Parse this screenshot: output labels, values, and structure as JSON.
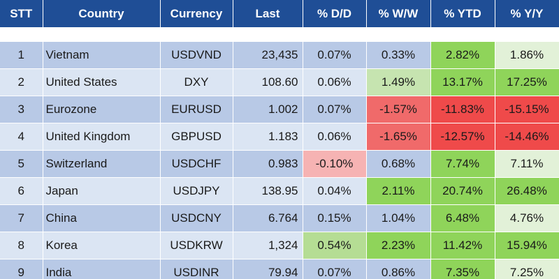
{
  "table": {
    "columns": [
      "STT",
      "Country",
      "Currency",
      "Last",
      "% D/D",
      "% W/W",
      "% YTD",
      "% Y/Y"
    ],
    "rows": [
      {
        "stt": "1",
        "country": "Vietnam",
        "currency": "USDVND",
        "last": "23,435",
        "dd": "0.07%",
        "ww": "0.33%",
        "ytd": "2.82%",
        "yy": "1.86%"
      },
      {
        "stt": "2",
        "country": "United States",
        "currency": "DXY",
        "last": "108.60",
        "dd": "0.06%",
        "ww": "1.49%",
        "ytd": "13.17%",
        "yy": "17.25%"
      },
      {
        "stt": "3",
        "country": "Eurozone",
        "currency": "EURUSD",
        "last": "1.002",
        "dd": "0.07%",
        "ww": "-1.57%",
        "ytd": "-11.83%",
        "yy": "-15.15%"
      },
      {
        "stt": "4",
        "country": "United Kingdom",
        "currency": "GBPUSD",
        "last": "1.183",
        "dd": "0.06%",
        "ww": "-1.65%",
        "ytd": "-12.57%",
        "yy": "-14.46%"
      },
      {
        "stt": "5",
        "country": "Switzerland",
        "currency": "USDCHF",
        "last": "0.983",
        "dd": "-0.10%",
        "ww": "0.68%",
        "ytd": "7.74%",
        "yy": "7.11%"
      },
      {
        "stt": "6",
        "country": "Japan",
        "currency": "USDJPY",
        "last": "138.95",
        "dd": "0.04%",
        "ww": "2.11%",
        "ytd": "20.74%",
        "yy": "26.48%"
      },
      {
        "stt": "7",
        "country": "China",
        "currency": "USDCNY",
        "last": "6.764",
        "dd": "0.15%",
        "ww": "1.04%",
        "ytd": "6.48%",
        "yy": "4.76%"
      },
      {
        "stt": "8",
        "country": "Korea",
        "currency": "USDKRW",
        "last": "1,324",
        "dd": "0.54%",
        "ww": "2.23%",
        "ytd": "11.42%",
        "yy": "15.94%"
      },
      {
        "stt": "9",
        "country": "India",
        "currency": "USDINR",
        "last": "79.94",
        "dd": "0.07%",
        "ww": "0.86%",
        "ytd": "7.35%",
        "yy": "7.25%"
      }
    ],
    "cell_colors": {
      "1": {
        "ytd": "#8fd45a",
        "yy": "#e2f1d8"
      },
      "2": {
        "ww": "#c6e4b0",
        "ytd": "#8fd45a",
        "yy": "#8fd45a"
      },
      "3": {
        "ww": "#f06a6a",
        "ytd": "#ef4a4a",
        "yy": "#ef4a4a"
      },
      "4": {
        "ww": "#f06a6a",
        "ytd": "#ef4a4a",
        "yy": "#ef4a4a"
      },
      "5": {
        "dd": "#f6b3b3",
        "ytd": "#8fd45a",
        "yy": "#e2f1d8"
      },
      "6": {
        "ww": "#8fd45a",
        "ytd": "#8fd45a",
        "yy": "#8fd45a"
      },
      "7": {
        "ytd": "#8fd45a",
        "yy": "#e2f1d8"
      },
      "8": {
        "dd": "#b5dd94",
        "ww": "#8fd45a",
        "ytd": "#8fd45a",
        "yy": "#8fd45a"
      },
      "9": {
        "ytd": "#8fd45a",
        "yy": "#e2f1d8"
      }
    },
    "header_color": "#1f4e96"
  }
}
